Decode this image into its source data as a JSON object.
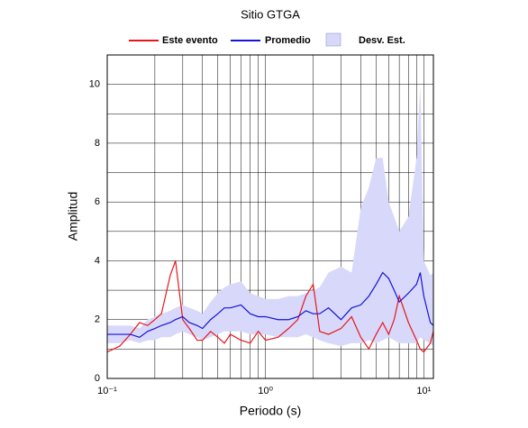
{
  "chart_data": {
    "type": "line",
    "title": "Sitio GTGA",
    "xlabel": "Periodo (s)",
    "ylabel": "Amplitud",
    "xscale": "log",
    "xlim": [
      0.1,
      11.5
    ],
    "ylim": [
      0,
      11
    ],
    "xticks": [
      {
        "value": 0.1,
        "label": "10⁻¹"
      },
      {
        "value": 1,
        "label": "10⁰"
      },
      {
        "value": 10,
        "label": "10¹"
      }
    ],
    "xminor": [
      0.2,
      0.3,
      0.4,
      0.5,
      0.6,
      0.7,
      0.8,
      0.9,
      2,
      3,
      4,
      5,
      6,
      7,
      8,
      9
    ],
    "yticks": [
      0,
      2,
      4,
      6,
      8,
      10
    ],
    "yminor": [
      1,
      3,
      5,
      7,
      9,
      11
    ],
    "grid": true,
    "x": [
      0.1,
      0.12,
      0.14,
      0.16,
      0.18,
      0.2,
      0.22,
      0.25,
      0.27,
      0.3,
      0.33,
      0.37,
      0.4,
      0.45,
      0.5,
      0.55,
      0.6,
      0.7,
      0.8,
      0.9,
      1.0,
      1.2,
      1.4,
      1.6,
      1.8,
      2.0,
      2.2,
      2.5,
      3,
      3.5,
      4,
      4.5,
      5,
      5.5,
      6,
      6.5,
      7,
      8,
      9,
      9.5,
      10,
      11,
      11.5
    ],
    "series": [
      {
        "name": "Este evento",
        "color": "#e8161b",
        "values": [
          0.9,
          1.1,
          1.5,
          1.9,
          1.8,
          2.0,
          2.2,
          3.5,
          4.0,
          2.0,
          1.7,
          1.3,
          1.3,
          1.6,
          1.4,
          1.2,
          1.5,
          1.3,
          1.2,
          1.6,
          1.3,
          1.4,
          1.7,
          2.0,
          2.8,
          3.2,
          1.6,
          1.5,
          1.7,
          2.1,
          1.4,
          1.0,
          1.5,
          1.9,
          1.5,
          2.0,
          2.8,
          1.9,
          1.3,
          1.0,
          0.9,
          1.2,
          1.6
        ]
      },
      {
        "name": "Promedio",
        "color": "#1515d8",
        "values": [
          1.5,
          1.5,
          1.5,
          1.4,
          1.6,
          1.7,
          1.8,
          1.9,
          2.0,
          2.1,
          1.9,
          1.8,
          1.7,
          2.0,
          2.2,
          2.4,
          2.4,
          2.5,
          2.2,
          2.1,
          2.1,
          2.0,
          2.0,
          2.1,
          2.3,
          2.2,
          2.2,
          2.4,
          2.0,
          2.4,
          2.5,
          2.8,
          3.2,
          3.6,
          3.4,
          3.0,
          2.6,
          2.9,
          3.2,
          3.6,
          2.8,
          1.9,
          1.8
        ]
      },
      {
        "name": "Desv. Est.",
        "color": "#d8d8fa",
        "type": "band",
        "lower": [
          1.2,
          1.2,
          1.3,
          1.2,
          1.3,
          1.3,
          1.4,
          1.4,
          1.5,
          1.6,
          1.5,
          1.4,
          1.3,
          1.4,
          1.5,
          1.6,
          1.6,
          1.6,
          1.5,
          1.5,
          1.5,
          1.4,
          1.4,
          1.4,
          1.5,
          1.4,
          1.3,
          1.2,
          1.1,
          1.2,
          1.2,
          1.3,
          1.2,
          1.3,
          1.4,
          1.3,
          1.2,
          1.2,
          1.2,
          1.4,
          1.3,
          1.2,
          1.1
        ],
        "upper": [
          1.8,
          1.8,
          1.8,
          1.7,
          2.0,
          2.1,
          2.2,
          2.3,
          2.4,
          2.5,
          2.4,
          2.3,
          2.2,
          2.6,
          2.9,
          3.1,
          3.2,
          3.3,
          2.9,
          2.8,
          2.7,
          2.7,
          2.8,
          2.8,
          2.9,
          3.0,
          3.1,
          3.6,
          3.8,
          3.6,
          5.8,
          6.5,
          7.5,
          7.5,
          6.0,
          5.5,
          5.0,
          5.5,
          7.5,
          10,
          4.0,
          3.5,
          3.6
        ]
      }
    ]
  }
}
